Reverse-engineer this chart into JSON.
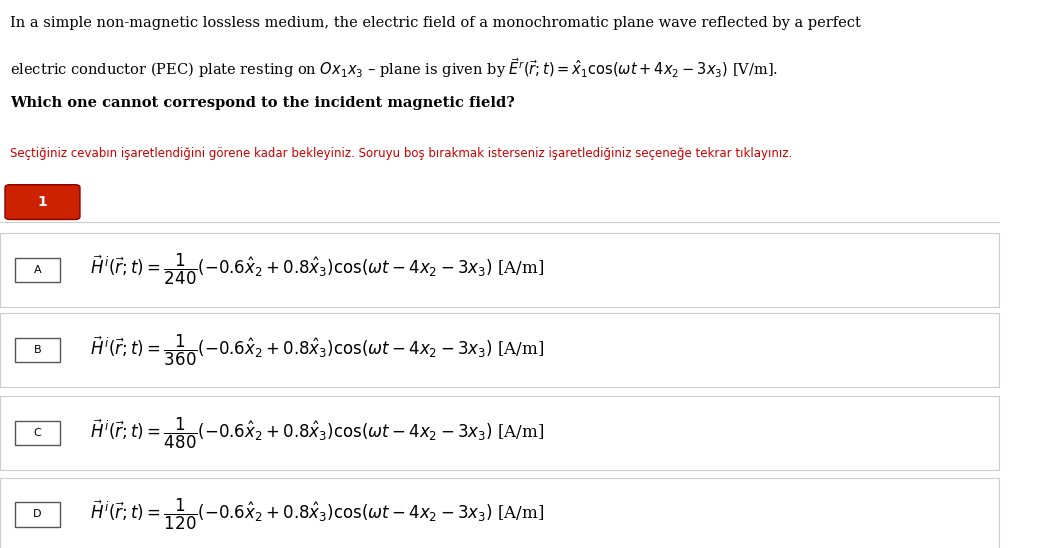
{
  "bg_color": "#ffffff",
  "title_text_line1": "In a simple non-magnetic lossless medium, the electric field of a monochromatic plane wave reflected by a perfect",
  "title_text_line2": "electric conductor (PEC) plate resting on $Ox_1x_3$ – plane is given by $\\vec{E}^r(\\vec{r};t) = \\hat{x}_1\\cos(\\omega t + 4x_2 - 3x_3)$ [V/m].",
  "title_text_line3": "Which one cannot correspond to the incident magnetic field?",
  "subtitle_color": "#cc0000",
  "subtitle_text": "Seçtiğiniz cevabın işaretlendiğini görene kadar bekleyiniz. Soruyu boş bırakmak isterseniz işaretlediğiniz seçeneğe tekrar tıklayınız.",
  "button_bg": "#cc2200",
  "button_text": "1",
  "options": [
    {
      "label": "A",
      "formula": "$\\vec{H}^{\\,i}(\\vec{r};t) = \\dfrac{1}{240}(-0.6\\hat{x}_2 + 0.8\\hat{x}_3)\\cos(\\omega t - 4x_2 - 3x_3)$ [A/m]"
    },
    {
      "label": "B",
      "formula": "$\\vec{H}^{\\,i}(\\vec{r};t) = \\dfrac{1}{360}(-0.6\\hat{x}_2 + 0.8\\hat{x}_3)\\cos(\\omega t - 4x_2 - 3x_3)$ [A/m]"
    },
    {
      "label": "C",
      "formula": "$\\vec{H}^{\\,i}(\\vec{r};t) = \\dfrac{1}{480}(-0.6\\hat{x}_2 + 0.8\\hat{x}_3)\\cos(\\omega t - 4x_2 - 3x_3)$ [A/m]"
    },
    {
      "label": "D",
      "formula": "$\\vec{H}^{\\,i}(\\vec{r};t) = \\dfrac{1}{120}(-0.6\\hat{x}_2 + 0.8\\hat{x}_3)\\cos(\\omega t - 4x_2 - 3x_3)$ [A/m]"
    }
  ],
  "figsize": [
    10.47,
    5.48
  ],
  "dpi": 100
}
